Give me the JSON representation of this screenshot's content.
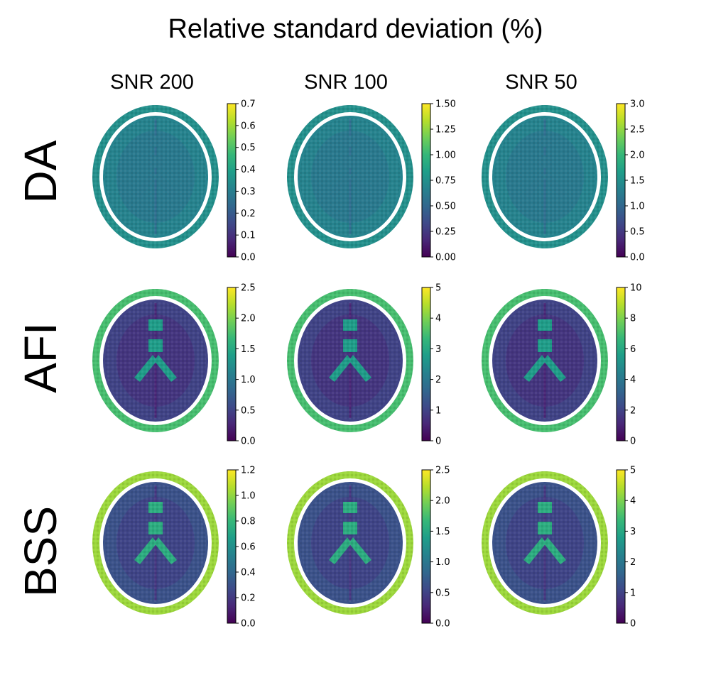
{
  "title": "Relative standard deviation (%)",
  "columns": [
    "SNR 200",
    "SNR 100",
    "SNR 50"
  ],
  "rows": [
    "DA",
    "AFI",
    "BSS"
  ],
  "colormap": {
    "name": "viridis",
    "stops": [
      "#440154",
      "#482878",
      "#3e4a89",
      "#31688e",
      "#26828e",
      "#1f9e89",
      "#35b779",
      "#6ece58",
      "#b5de2b",
      "#fde725"
    ]
  },
  "chart_data": {
    "type": "heatmap",
    "title": "Relative standard deviation (%)",
    "colorbar_ticks": [
      [
        {
          "ticks": [
            0.0,
            0.1,
            0.2,
            0.3,
            0.4,
            0.5,
            0.6,
            0.7
          ],
          "labels": [
            "0.0",
            "0.1",
            "0.2",
            "0.3",
            "0.4",
            "0.5",
            "0.6",
            "0.7"
          ],
          "range": [
            0,
            0.7
          ]
        },
        {
          "ticks": [
            0.0,
            0.25,
            0.5,
            0.75,
            1.0,
            1.25,
            1.5
          ],
          "labels": [
            "0.00",
            "0.25",
            "0.50",
            "0.75",
            "1.00",
            "1.25",
            "1.50"
          ],
          "range": [
            0,
            1.5
          ]
        },
        {
          "ticks": [
            0.0,
            0.5,
            1.0,
            1.5,
            2.0,
            2.5,
            3.0
          ],
          "labels": [
            "0.0",
            "0.5",
            "1.0",
            "1.5",
            "2.0",
            "2.5",
            "3.0"
          ],
          "range": [
            0,
            3.0
          ]
        }
      ],
      [
        {
          "ticks": [
            0.0,
            0.5,
            1.0,
            1.5,
            2.0,
            2.5
          ],
          "labels": [
            "0.0",
            "0.5",
            "1.0",
            "1.5",
            "2.0",
            "2.5"
          ],
          "range": [
            0,
            2.5
          ]
        },
        {
          "ticks": [
            0,
            1,
            2,
            3,
            4,
            5
          ],
          "labels": [
            "0",
            "1",
            "2",
            "3",
            "4",
            "5"
          ],
          "range": [
            0,
            5
          ]
        },
        {
          "ticks": [
            0,
            2,
            4,
            6,
            8,
            10
          ],
          "labels": [
            "0",
            "2",
            "4",
            "6",
            "8",
            "10"
          ],
          "range": [
            0,
            10
          ]
        }
      ],
      [
        {
          "ticks": [
            0.0,
            0.2,
            0.4,
            0.6,
            0.8,
            1.0,
            1.2
          ],
          "labels": [
            "0.0",
            "0.2",
            "0.4",
            "0.6",
            "0.8",
            "1.0",
            "1.2"
          ],
          "range": [
            0,
            1.2
          ]
        },
        {
          "ticks": [
            0.0,
            0.5,
            1.0,
            1.5,
            2.0,
            2.5
          ],
          "labels": [
            "0.0",
            "0.5",
            "1.0",
            "1.5",
            "2.0",
            "2.5"
          ],
          "range": [
            0,
            2.5
          ]
        },
        {
          "ticks": [
            0,
            1,
            2,
            3,
            4,
            5
          ],
          "labels": [
            "0",
            "1",
            "2",
            "3",
            "4",
            "5"
          ],
          "range": [
            0,
            5
          ]
        }
      ]
    ],
    "maps": {
      "DA": {
        "brain_fraction": 0.45,
        "skull_fraction": 0.5,
        "gray_matter_fraction": 0.45,
        "white_matter_fraction": 0.4,
        "ventricles_fraction": 0.4
      },
      "AFI": {
        "brain_fraction": 0.2,
        "skull_fraction": 0.7,
        "gray_matter_fraction": 0.2,
        "white_matter_fraction": 0.15,
        "ventricles_fraction": 0.55
      },
      "BSS": {
        "brain_fraction": 0.25,
        "skull_fraction": 0.85,
        "gray_matter_fraction": 0.25,
        "white_matter_fraction": 0.2,
        "ventricles_fraction": 0.62
      }
    }
  }
}
